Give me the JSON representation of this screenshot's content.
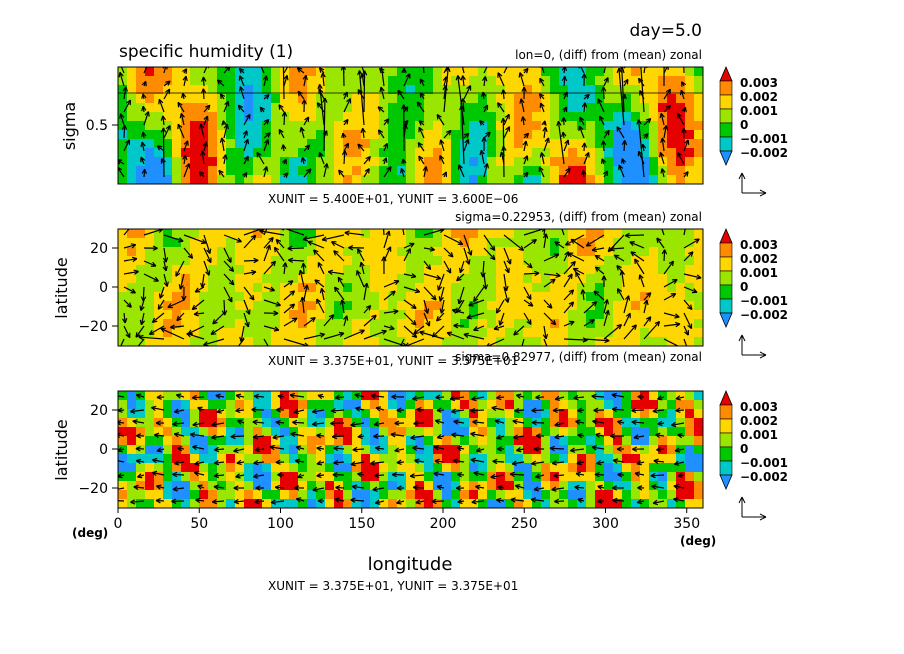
{
  "header": {
    "day_label": "day=5.0",
    "title": "specific humidity (1)"
  },
  "colorbar": {
    "levels": [
      "0.003",
      "0.002",
      "0.001",
      "0",
      "−0.001",
      "−0.002"
    ],
    "colors": [
      "#1e90ff",
      "#00c8c8",
      "#00c800",
      "#9be600",
      "#ffd700",
      "#ff8c00",
      "#e60000"
    ]
  },
  "xaxis": {
    "label": "longitude",
    "unit_left": "(deg)",
    "unit_right": "(deg)",
    "ticks": [
      "0",
      "50",
      "100",
      "150",
      "200",
      "250",
      "300",
      "350"
    ]
  },
  "panels": [
    {
      "subtitle": "lon=0, (diff) from (mean) zonal",
      "ylabel": "sigma",
      "yticks": [
        "0.5"
      ],
      "unit_caption": "XUNIT = 5.400E+01, YUNIT = 3.600E−06"
    },
    {
      "subtitle": "sigma=0.22953, (diff) from (mean) zonal",
      "ylabel": "latitude",
      "yticks": [
        "20",
        "0",
        "−20"
      ],
      "unit_caption": "XUNIT = 3.375E+01, YUNIT = 3.375E+01"
    },
    {
      "subtitle": "sigma=0.82977, (diff) from (mean) zonal",
      "ylabel": "latitude",
      "yticks": [
        "20",
        "0",
        "−20"
      ],
      "unit_caption": "XUNIT = 3.375E+01, YUNIT = 3.375E+01"
    }
  ],
  "chart_data": [
    {
      "type": "heatmap",
      "title": "specific humidity (1)",
      "subtitle": "lon=0, (diff) from (mean) zonal",
      "xlabel": "longitude",
      "ylabel": "sigma",
      "xlim": [
        0,
        360
      ],
      "ylim": [
        0,
        1
      ],
      "yticks": [
        0.5
      ],
      "color_levels": [
        -0.002,
        -0.001,
        0,
        0.001,
        0.002,
        0.003
      ],
      "vector_overlay": true,
      "vector_units": {
        "x": 54.0,
        "y": 3.6e-06
      }
    },
    {
      "type": "heatmap",
      "subtitle": "sigma=0.22953, (diff) from (mean) zonal",
      "xlabel": "longitude",
      "ylabel": "latitude",
      "xlim": [
        0,
        360
      ],
      "ylim": [
        -30,
        30
      ],
      "yticks": [
        20,
        0,
        -20
      ],
      "color_levels": [
        -0.002,
        -0.001,
        0,
        0.001,
        0.002,
        0.003
      ],
      "vector_overlay": true,
      "vector_units": {
        "x": 33.75,
        "y": 33.75
      }
    },
    {
      "type": "heatmap",
      "subtitle": "sigma=0.82977, (diff) from (mean) zonal",
      "xlabel": "longitude",
      "ylabel": "latitude",
      "xlim": [
        0,
        360
      ],
      "ylim": [
        -30,
        30
      ],
      "xticks": [
        0,
        50,
        100,
        150,
        200,
        250,
        300,
        350
      ],
      "yticks": [
        20,
        0,
        -20
      ],
      "color_levels": [
        -0.002,
        -0.001,
        0,
        0.001,
        0.002,
        0.003
      ],
      "vector_overlay": true,
      "vector_units": {
        "x": 33.75,
        "y": 33.75
      }
    }
  ]
}
